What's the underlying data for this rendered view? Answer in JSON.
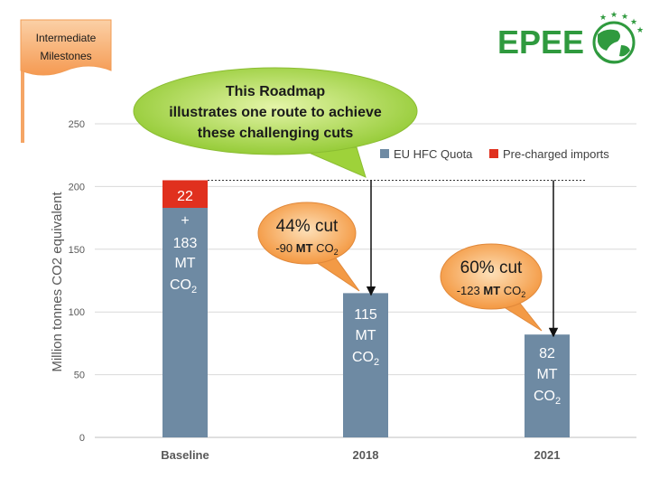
{
  "flag": {
    "line1": "Intermediate",
    "line2": "Milestones"
  },
  "logo": {
    "text": "EPEE"
  },
  "callout_main": {
    "line1": "This Roadmap",
    "line2": "illustrates one route to achieve",
    "line3": "these challenging cuts"
  },
  "callout_2018": {
    "title": "44% cut",
    "sub_value": "-90",
    "sub_bold": "MT",
    "sub_unit": "CO",
    "sub_sub": "2"
  },
  "callout_2021": {
    "title": "60% cut",
    "sub_value": "-123",
    "sub_bold": "MT",
    "sub_unit": "CO",
    "sub_sub": "2"
  },
  "bar_labels": {
    "baseline_top": "22",
    "baseline_plus": "+",
    "baseline_value": "183",
    "baseline_mt": "MT",
    "baseline_co": "CO",
    "baseline_sub": "2",
    "y2018_value": "115",
    "y2018_mt": "MT",
    "y2018_co": "CO",
    "y2018_sub": "2",
    "y2021_value": "82",
    "y2021_mt": "MT",
    "y2021_co": "CO",
    "y2021_sub": "2"
  },
  "colors": {
    "quota": "#6e8aa3",
    "imports": "#e0301e",
    "grid": "#d9d9d9",
    "logo_green": "#2f9a3e",
    "callout_green": "#9ed23a",
    "callout_orange": "#f5a04a",
    "flag": "#f7a257"
  },
  "chart_data": {
    "type": "bar",
    "stacked": true,
    "categories": [
      "Baseline",
      "2018",
      "2021"
    ],
    "series": [
      {
        "name": "EU HFC Quota",
        "values": [
          183,
          115,
          82
        ]
      },
      {
        "name": "Pre-charged imports",
        "values": [
          22,
          0,
          0
        ]
      }
    ],
    "ylabel": "Million tonnes CO2 equivalent",
    "ylim": [
      0,
      250
    ],
    "yticks": [
      0,
      50,
      100,
      150,
      200,
      250
    ],
    "reference_line": 205,
    "grid": true,
    "legend_position": "top-right"
  }
}
